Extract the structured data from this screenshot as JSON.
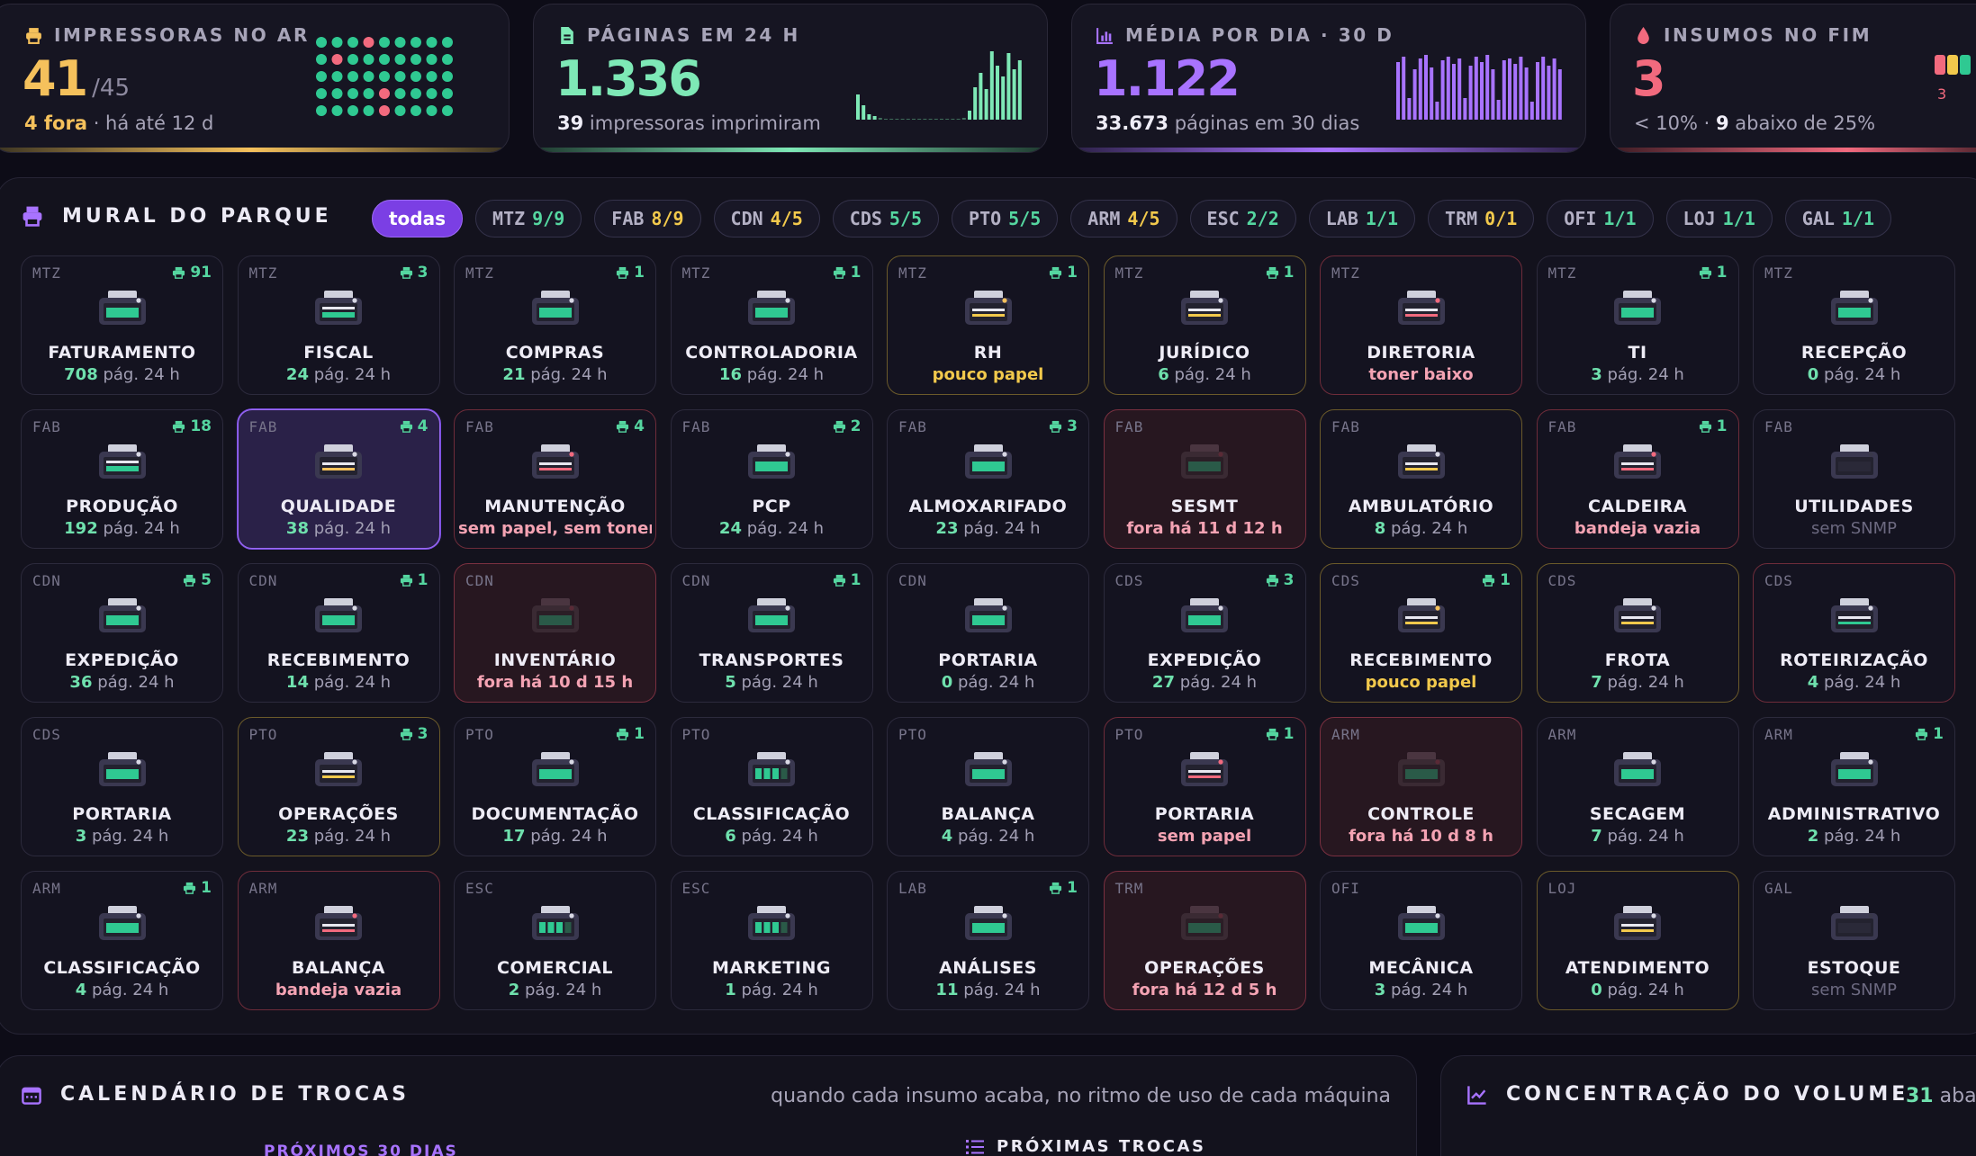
{
  "kpis": [
    {
      "title": "IMPRESSORAS NO AR",
      "value": "41",
      "value_suffix": "/45",
      "sub_bold": "4 fora",
      "sub_rest": " · há até 12 d",
      "color": "#f5c15c",
      "icon": "printer-icon"
    },
    {
      "title": "PÁGINAS EM 24 H",
      "value": "1.336",
      "sub_bold": "39",
      "sub_rest": " impressoras imprimiram",
      "color": "#7ee8b6",
      "icon": "document-icon"
    },
    {
      "title": "MÉDIA POR DIA · 30 D",
      "value": "1.122",
      "sub_bold": "33.673",
      "sub_rest": " páginas em 30 dias",
      "color": "#a873ff",
      "icon": "bar-chart-icon"
    },
    {
      "title": "INSUMOS NO FIM",
      "value": "3",
      "sub_bold": "",
      "sub_rest": "< 10% · ",
      "sub_bold2": "9",
      "sub_rest2": " abaixo de 25%",
      "color": "#f26a7e",
      "icon": "drop-icon",
      "aside": "3"
    }
  ],
  "mural": {
    "title": "MURAL DO PARQUE",
    "chips": [
      {
        "code": "todas",
        "count": ""
      },
      {
        "code": "MTZ",
        "count": "9/9"
      },
      {
        "code": "FAB",
        "count": "8/9"
      },
      {
        "code": "CDN",
        "count": "4/5"
      },
      {
        "code": "CDS",
        "count": "5/5"
      },
      {
        "code": "PTO",
        "count": "5/5"
      },
      {
        "code": "ARM",
        "count": "4/5"
      },
      {
        "code": "ESC",
        "count": "2/2"
      },
      {
        "code": "LAB",
        "count": "1/1"
      },
      {
        "code": "TRM",
        "count": "0/1"
      },
      {
        "code": "OFI",
        "count": "1/1"
      },
      {
        "code": "LOJ",
        "count": "1/1"
      },
      {
        "code": "GAL",
        "count": "1/1"
      }
    ],
    "cards": [
      {
        "site": "MTZ",
        "count": "91",
        "name": "FATURAMENTO",
        "num": "708",
        "stat": " pág. 24 h",
        "state": "ok"
      },
      {
        "site": "MTZ",
        "count": "3",
        "name": "FISCAL",
        "num": "24",
        "stat": " pág. 24 h",
        "state": "ok"
      },
      {
        "site": "MTZ",
        "count": "1",
        "name": "COMPRAS",
        "num": "21",
        "stat": " pág. 24 h",
        "state": "ok"
      },
      {
        "site": "MTZ",
        "count": "1",
        "name": "CONTROLADORIA",
        "num": "16",
        "stat": " pág. 24 h",
        "state": "ok"
      },
      {
        "site": "MTZ",
        "count": "1",
        "name": "RH",
        "num": "",
        "stat": "pouco papel",
        "state": "warn"
      },
      {
        "site": "MTZ",
        "count": "1",
        "name": "JURÍDICO",
        "num": "6",
        "stat": " pág. 24 h",
        "state": "warnb"
      },
      {
        "site": "MTZ",
        "count": "",
        "name": "DIRETORIA",
        "num": "",
        "stat": "toner baixo",
        "state": "alertw"
      },
      {
        "site": "MTZ",
        "count": "1",
        "name": "TI",
        "num": "3",
        "stat": " pág. 24 h",
        "state": "ok"
      },
      {
        "site": "MTZ",
        "count": "",
        "name": "RECEPÇÃO",
        "num": "0",
        "stat": " pág. 24 h",
        "state": "ok"
      },
      {
        "site": "FAB",
        "count": "18",
        "name": "PRODUÇÃO",
        "num": "192",
        "stat": " pág. 24 h",
        "state": "ok"
      },
      {
        "site": "FAB",
        "count": "4",
        "name": "QUALIDADE",
        "num": "38",
        "stat": " pág. 24 h",
        "state": "sel"
      },
      {
        "site": "FAB",
        "count": "4",
        "name": "MANUTENÇÃO",
        "num": "",
        "stat": "sem papel, sem toner",
        "state": "alert"
      },
      {
        "site": "FAB",
        "count": "2",
        "name": "PCP",
        "num": "24",
        "stat": " pág. 24 h",
        "state": "ok"
      },
      {
        "site": "FAB",
        "count": "3",
        "name": "ALMOXARIFADO",
        "num": "23",
        "stat": " pág. 24 h",
        "state": "ok"
      },
      {
        "site": "FAB",
        "count": "",
        "name": "SESMT",
        "num": "",
        "stat": "fora há 11 d 12 h",
        "state": "off"
      },
      {
        "site": "FAB",
        "count": "",
        "name": "AMBULATÓRIO",
        "num": "8",
        "stat": " pág. 24 h",
        "state": "warnb"
      },
      {
        "site": "FAB",
        "count": "1",
        "name": "CALDEIRA",
        "num": "",
        "stat": "bandeja vazia",
        "state": "alert"
      },
      {
        "site": "FAB",
        "count": "",
        "name": "UTILIDADES",
        "num": "",
        "stat": "sem SNMP",
        "state": "gray"
      },
      {
        "site": "CDN",
        "count": "5",
        "name": "EXPEDIÇÃO",
        "num": "36",
        "stat": " pág. 24 h",
        "state": "ok"
      },
      {
        "site": "CDN",
        "count": "1",
        "name": "RECEBIMENTO",
        "num": "14",
        "stat": " pág. 24 h",
        "state": "ok"
      },
      {
        "site": "CDN",
        "count": "",
        "name": "INVENTÁRIO",
        "num": "",
        "stat": "fora há 10 d 15 h",
        "state": "off"
      },
      {
        "site": "CDN",
        "count": "1",
        "name": "TRANSPORTES",
        "num": "5",
        "stat": " pág. 24 h",
        "state": "ok"
      },
      {
        "site": "CDN",
        "count": "",
        "name": "PORTARIA",
        "num": "0",
        "stat": " pág. 24 h",
        "state": "ok"
      },
      {
        "site": "CDS",
        "count": "3",
        "name": "EXPEDIÇÃO",
        "num": "27",
        "stat": " pág. 24 h",
        "state": "ok"
      },
      {
        "site": "CDS",
        "count": "1",
        "name": "RECEBIMENTO",
        "num": "",
        "stat": "pouco papel",
        "state": "warn"
      },
      {
        "site": "CDS",
        "count": "",
        "name": "FROTA",
        "num": "7",
        "stat": " pág. 24 h",
        "state": "warnb"
      },
      {
        "site": "CDS",
        "count": "",
        "name": "ROTEIRIZAÇÃO",
        "num": "4",
        "stat": " pág. 24 h",
        "state": "alertb"
      },
      {
        "site": "CDS",
        "count": "",
        "name": "PORTARIA",
        "num": "3",
        "stat": " pág. 24 h",
        "state": "ok"
      },
      {
        "site": "PTO",
        "count": "3",
        "name": "OPERAÇÕES",
        "num": "23",
        "stat": " pág. 24 h",
        "state": "warnb"
      },
      {
        "site": "PTO",
        "count": "1",
        "name": "DOCUMENTAÇÃO",
        "num": "17",
        "stat": " pág. 24 h",
        "state": "ok"
      },
      {
        "site": "PTO",
        "count": "",
        "name": "CLASSIFICAÇÃO",
        "num": "6",
        "stat": " pág. 24 h",
        "state": "ok"
      },
      {
        "site": "PTO",
        "count": "",
        "name": "BALANÇA",
        "num": "4",
        "stat": " pág. 24 h",
        "state": "ok"
      },
      {
        "site": "PTO",
        "count": "1",
        "name": "PORTARIA",
        "num": "",
        "stat": "sem papel",
        "state": "alertw"
      },
      {
        "site": "ARM",
        "count": "",
        "name": "CONTROLE",
        "num": "",
        "stat": "fora há 10 d 8 h",
        "state": "off"
      },
      {
        "site": "ARM",
        "count": "",
        "name": "SECAGEM",
        "num": "7",
        "stat": " pág. 24 h",
        "state": "ok"
      },
      {
        "site": "ARM",
        "count": "1",
        "name": "ADMINISTRATIVO",
        "num": "2",
        "stat": " pág. 24 h",
        "state": "ok"
      },
      {
        "site": "ARM",
        "count": "1",
        "name": "CLASSIFICAÇÃO",
        "num": "4",
        "stat": " pág. 24 h",
        "state": "ok"
      },
      {
        "site": "ARM",
        "count": "",
        "name": "BALANÇA",
        "num": "",
        "stat": "bandeja vazia",
        "state": "alert"
      },
      {
        "site": "ESC",
        "count": "",
        "name": "COMERCIAL",
        "num": "2",
        "stat": " pág. 24 h",
        "state": "ok"
      },
      {
        "site": "ESC",
        "count": "",
        "name": "MARKETING",
        "num": "1",
        "stat": " pág. 24 h",
        "state": "ok"
      },
      {
        "site": "LAB",
        "count": "1",
        "name": "ANÁLISES",
        "num": "11",
        "stat": " pág. 24 h",
        "state": "ok"
      },
      {
        "site": "TRM",
        "count": "",
        "name": "OPERAÇÕES",
        "num": "",
        "stat": "fora há 12 d 5 h",
        "state": "off"
      },
      {
        "site": "OFI",
        "count": "",
        "name": "MECÂNICA",
        "num": "3",
        "stat": " pág. 24 h",
        "state": "ok"
      },
      {
        "site": "LOJ",
        "count": "",
        "name": "ATENDIMENTO",
        "num": "0",
        "stat": " pág. 24 h",
        "state": "warnb"
      },
      {
        "site": "GAL",
        "count": "",
        "name": "ESTOQUE",
        "num": "",
        "stat": "sem SNMP",
        "state": "gray"
      }
    ]
  },
  "calendar": {
    "title": "CALENDÁRIO DE TROCAS",
    "subtitle": "quando cada insumo acaba, no ritmo de uso de cada máquina",
    "section_left": "PRÓXIMOS 30 DIAS",
    "section_right": "PRÓXIMAS TROCAS"
  },
  "volume": {
    "title": "CONCENTRAÇÃO DO VOLUME",
    "aside_num": "31",
    "aside_text": " abai"
  },
  "colors": {
    "ok": "#2fc992",
    "warn": "#f2c94c",
    "alert": "#f26a7e",
    "accent": "#a873ff"
  }
}
